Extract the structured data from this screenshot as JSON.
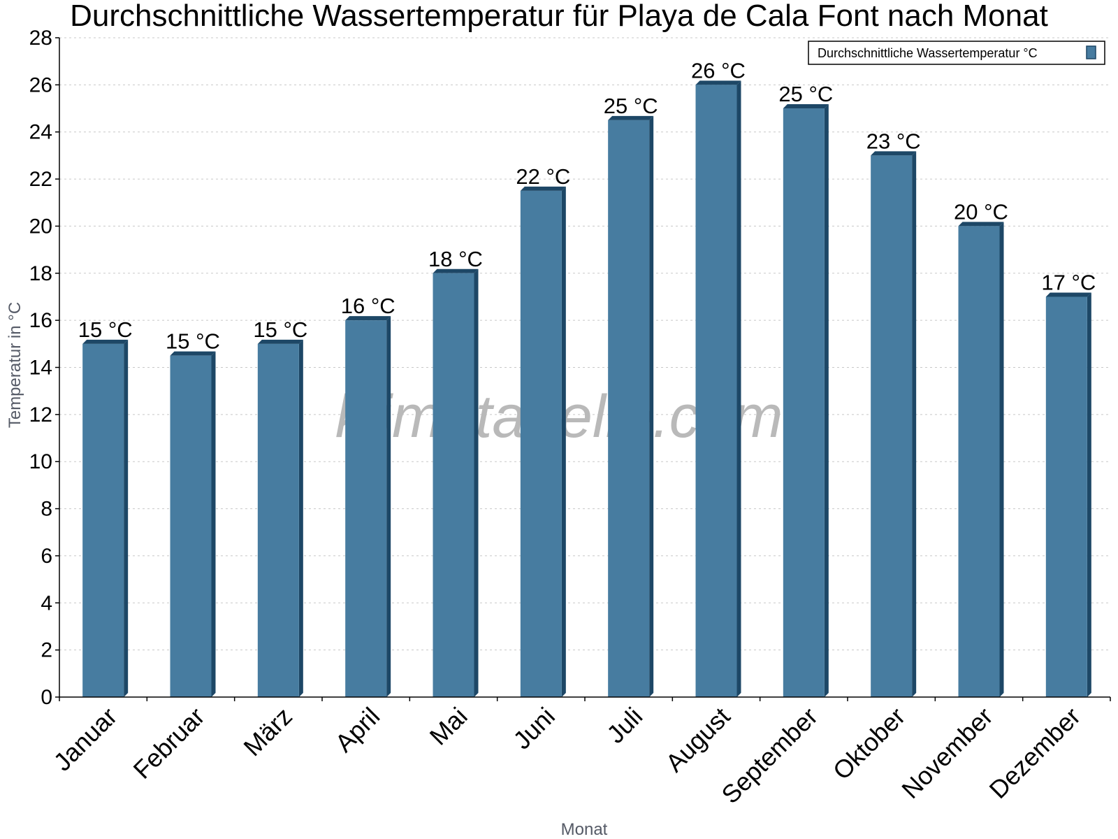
{
  "chart_data": {
    "type": "bar",
    "title": "Durchschnittliche Wassertemperatur für Playa de Cala Font nach Monat",
    "xlabel": "Monat",
    "ylabel": "Temperatur in °C",
    "ylim": [
      0,
      28
    ],
    "ytick_step": 2,
    "grid": true,
    "legend_position": "top-right",
    "watermark": "klimatabelle.com",
    "categories": [
      "Januar",
      "Februar",
      "März",
      "April",
      "Mai",
      "Juni",
      "Juli",
      "August",
      "September",
      "Oktober",
      "November",
      "Dezember"
    ],
    "series": [
      {
        "name": "Durchschnittliche Wassertemperatur °C",
        "color": "#477ca0",
        "values": [
          15,
          14.5,
          15,
          16,
          18,
          21.5,
          24.5,
          26,
          25,
          23,
          20,
          17
        ],
        "labels": [
          "15 °C",
          "15 °C",
          "15 °C",
          "16 °C",
          "18 °C",
          "22 °C",
          "25 °C",
          "26 °C",
          "25 °C",
          "23 °C",
          "20 °C",
          "17 °C"
        ]
      }
    ]
  }
}
